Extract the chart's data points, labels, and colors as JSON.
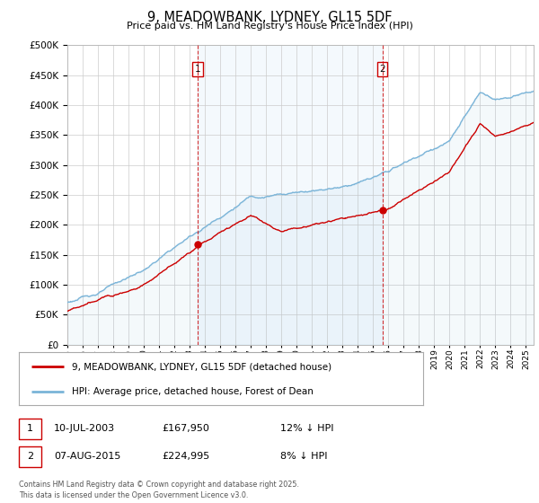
{
  "title": "9, MEADOWBANK, LYDNEY, GL15 5DF",
  "subtitle": "Price paid vs. HM Land Registry's House Price Index (HPI)",
  "ylim": [
    0,
    500000
  ],
  "yticks": [
    0,
    50000,
    100000,
    150000,
    200000,
    250000,
    300000,
    350000,
    400000,
    450000,
    500000
  ],
  "hpi_color": "#7ab4d8",
  "hpi_fill_color": "#d6eaf8",
  "price_color": "#cc0000",
  "vline_color": "#cc0000",
  "background_color": "#ffffff",
  "grid_color": "#cccccc",
  "legend_label_price": "9, MEADOWBANK, LYDNEY, GL15 5DF (detached house)",
  "legend_label_hpi": "HPI: Average price, detached house, Forest of Dean",
  "annotation1_date": "10-JUL-2003",
  "annotation1_price": "£167,950",
  "annotation1_pct": "12% ↓ HPI",
  "annotation2_date": "07-AUG-2015",
  "annotation2_price": "£224,995",
  "annotation2_pct": "8% ↓ HPI",
  "footer": "Contains HM Land Registry data © Crown copyright and database right 2025.\nThis data is licensed under the Open Government Licence v3.0.",
  "purchase1_year": 2003.53,
  "purchase1_price": 167950,
  "purchase2_year": 2015.6,
  "purchase2_price": 224995,
  "xmin": 1995,
  "xmax": 2025.5
}
